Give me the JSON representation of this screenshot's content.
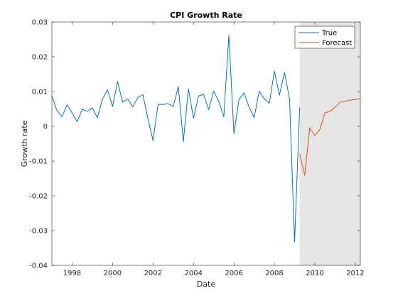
{
  "chart_data": {
    "type": "line",
    "title": "CPI Growth Rate",
    "xlabel": "Date",
    "ylabel": "Growth rate",
    "xlim": [
      1997.0,
      2012.25
    ],
    "ylim": [
      -0.04,
      0.03
    ],
    "x_ticks": [
      1998,
      2000,
      2002,
      2004,
      2006,
      2008,
      2010,
      2012
    ],
    "x_tick_labels": [
      "1998",
      "2000",
      "2002",
      "2004",
      "2006",
      "2008",
      "2010",
      "2012"
    ],
    "y_ticks": [
      -0.04,
      -0.03,
      -0.02,
      -0.01,
      0,
      0.01,
      0.02,
      0.03
    ],
    "y_tick_labels": [
      "-0.04",
      "-0.03",
      "-0.02",
      "-0.01",
      "0",
      "0.01",
      "0.02",
      "0.03"
    ],
    "forecast_region": [
      2009.25,
      2012.25
    ],
    "forecast_region_color": "#e5e5e5",
    "grid": false,
    "legend_position": "top-right",
    "series": [
      {
        "name": "True",
        "color": "#0072bd",
        "x": [
          1997.0,
          1997.25,
          1997.5,
          1997.75,
          1998.0,
          1998.25,
          1998.5,
          1998.75,
          1999.0,
          1999.25,
          1999.5,
          1999.75,
          2000.0,
          2000.25,
          2000.5,
          2000.75,
          2001.0,
          2001.25,
          2001.5,
          2001.75,
          2002.0,
          2002.25,
          2002.5,
          2002.75,
          2003.0,
          2003.25,
          2003.5,
          2003.75,
          2004.0,
          2004.25,
          2004.5,
          2004.75,
          2005.0,
          2005.25,
          2005.5,
          2005.75,
          2006.0,
          2006.25,
          2006.5,
          2006.75,
          2007.0,
          2007.25,
          2007.5,
          2007.75,
          2008.0,
          2008.25,
          2008.5,
          2008.75,
          2009.0,
          2009.25
        ],
        "values": [
          0.0088,
          0.0045,
          0.0028,
          0.0062,
          0.0039,
          0.0013,
          0.0049,
          0.0043,
          0.0053,
          0.0025,
          0.0078,
          0.0105,
          0.0057,
          0.0129,
          0.0069,
          0.0078,
          0.0056,
          0.0083,
          0.0091,
          0.0022,
          -0.0041,
          0.0063,
          0.0063,
          0.0065,
          0.0057,
          0.0114,
          -0.0044,
          0.0108,
          0.0023,
          0.0087,
          0.0092,
          0.0048,
          0.0101,
          0.0072,
          0.0027,
          0.0262,
          -0.0021,
          0.0077,
          0.0096,
          0.0055,
          0.0025,
          0.0101,
          0.0079,
          0.0066,
          0.0159,
          0.0089,
          0.0155,
          0.0079,
          -0.0333,
          0.0054
        ]
      },
      {
        "name": "Forecast",
        "color": "#d95319",
        "x": [
          2009.25,
          2009.5,
          2009.75,
          2010.0,
          2010.25,
          2010.5,
          2010.75,
          2011.0,
          2011.25,
          2011.5,
          2011.75,
          2012.0,
          2012.25
        ],
        "values": [
          -0.0079,
          -0.0141,
          -0.0004,
          -0.0027,
          -0.0009,
          0.0039,
          0.0043,
          0.0055,
          0.0069,
          0.0072,
          0.0075,
          0.0077,
          0.0079
        ]
      }
    ]
  }
}
